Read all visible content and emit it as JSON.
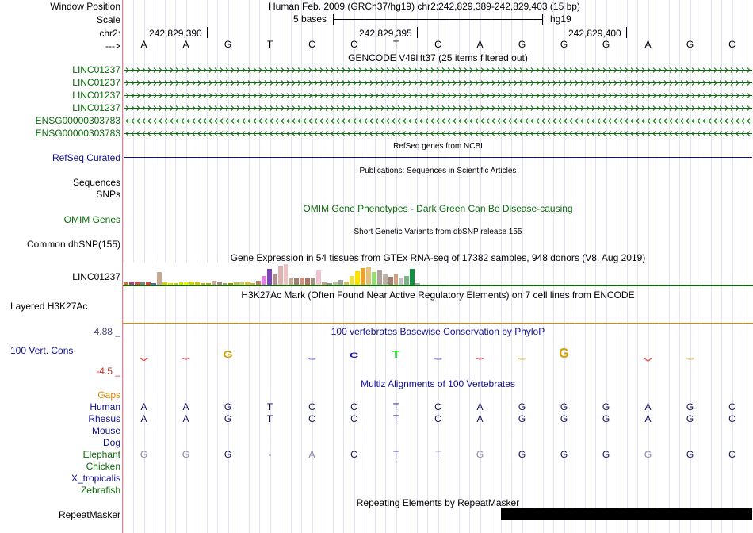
{
  "colors": {
    "label_green": "#0a6a0a",
    "label_blue": "#101090",
    "orange": "#d98a00",
    "purple_label": "#44447a"
  },
  "ruler": {
    "window_position_label": "Window Position",
    "window_text": "Human Feb. 2009 (GRCh37/hg19)   chr2:242,829,389-242,829,403 (15 bp)",
    "scale_label": "Scale",
    "scale_text": "5 bases",
    "assembly": "hg19",
    "chr_label": "chr2:",
    "positions": [
      "242,829,390",
      "242,829,395",
      "242,829,400"
    ],
    "arrow_label": "--->",
    "bases": [
      "A",
      "A",
      "G",
      "T",
      "C",
      "C",
      "T",
      "C",
      "A",
      "G",
      "G",
      "G",
      "A",
      "G",
      "C"
    ]
  },
  "gencode": {
    "title": "GENCODE V49lift37 (25 items filtered out)",
    "tracks": [
      {
        "name": "LINC01237",
        "dir": "fwd"
      },
      {
        "name": "LINC01237",
        "dir": "fwd"
      },
      {
        "name": "LINC01237",
        "dir": "fwd"
      },
      {
        "name": "LINC01237",
        "dir": "fwd"
      },
      {
        "name": "ENSG00000303783",
        "dir": "rev"
      },
      {
        "name": "ENSG00000303783",
        "dir": "rev"
      }
    ]
  },
  "refseq": {
    "title": "RefSeq genes from NCBI",
    "label": "RefSeq Curated"
  },
  "publications": {
    "title": "Publications: Sequences in Scientific Articles",
    "label": "Sequences"
  },
  "snps": {
    "label": "SNPs"
  },
  "omim": {
    "title": "OMIM Gene Phenotypes - Dark Green Can Be Disease-causing",
    "label": "OMIM Genes"
  },
  "dbsnp": {
    "title": "Short Genetic Variants from dbSNP release 155",
    "label": "Common dbSNP(155)"
  },
  "gtex": {
    "title": "Gene Expression in 54 tissues from GTEx RNA-seq of 17382 samples, 948 donors (V8, Aug 2019)",
    "label": "LINC01237",
    "bars": [
      3,
      4,
      4,
      3,
      3,
      2,
      16,
      3,
      2,
      2,
      3,
      3,
      4,
      3,
      2,
      2,
      5,
      3,
      2,
      2,
      3,
      3,
      4,
      2,
      5,
      11,
      20,
      13,
      24,
      26,
      8,
      8,
      9,
      8,
      9,
      18,
      3,
      2,
      4,
      6,
      4,
      11,
      17,
      21,
      23,
      16,
      19,
      13,
      10,
      14,
      9,
      11,
      20,
      2
    ],
    "colors": [
      "#d46a3d",
      "#a04080",
      "#cc5050",
      "#808080",
      "#e04030",
      "#6060c0",
      "#c8a890",
      "#e6c800",
      "#f0d000",
      "#c0d000",
      "#e0e000",
      "#f0f000",
      "#d0d000",
      "#e0c000",
      "#c0b000",
      "#b0b000",
      "#c8a890",
      "#b08080",
      "#a0a060",
      "#909000",
      "#c0c040",
      "#d0d060",
      "#e8c040",
      "#d8b030",
      "#c08060",
      "#e080e0",
      "#8040c0",
      "#b09090",
      "#e0b0b0",
      "#f0c0c0",
      "#c8a890",
      "#a08070",
      "#d09080",
      "#b07060",
      "#a09080",
      "#f0c0d0",
      "#d0a080",
      "#909090",
      "#c0c0a0",
      "#a0a0a0",
      "#d8b870",
      "#f0e040",
      "#ffe000",
      "#f0a030",
      "#e0c080",
      "#90e070",
      "#b0a0a0",
      "#c0b0a0",
      "#a08070",
      "#d0a080",
      "#c0c0c0",
      "#80b090",
      "#109040",
      "#c0a0d0"
    ]
  },
  "h3k27ac": {
    "title": "H3K27Ac Mark (Often Found Near Active Regulatory Elements) on 7 cell lines from ENCODE",
    "label": "Layered H3K27Ac"
  },
  "conservation": {
    "title": "100 vertebrates Basewise Conservation by PhyloP",
    "label": "100 Vert. Cons",
    "max": "4.88 _",
    "min": "-4.5 _",
    "scores": [
      -0.4,
      -0.2,
      0.9,
      0,
      -0.2,
      0.7,
      1.0,
      -0.2,
      -0.3,
      -0.3,
      1.3,
      0,
      -0.5,
      -0.2,
      0
    ]
  },
  "multiz": {
    "title": "Multiz Alignments of 100 Vertebrates",
    "gaps_label": "Gaps",
    "species": [
      {
        "name": "Human",
        "bases": [
          "A",
          "A",
          "G",
          "T",
          "C",
          "C",
          "T",
          "C",
          "A",
          "G",
          "G",
          "G",
          "A",
          "G",
          "C"
        ]
      },
      {
        "name": "Rhesus",
        "bases": [
          "A",
          "A",
          "G",
          "T",
          "C",
          "C",
          "T",
          "C",
          "A",
          "G",
          "G",
          "G",
          "A",
          "G",
          "C"
        ]
      },
      {
        "name": "Mouse",
        "bases": [
          "",
          "",
          "",
          "",
          "",
          "",
          "",
          "",
          "",
          "",
          "",
          "",
          "",
          "",
          ""
        ]
      },
      {
        "name": "Dog",
        "bases": [
          "",
          "",
          "",
          "",
          "",
          "",
          "",
          "",
          "",
          "",
          "",
          "",
          "",
          "",
          ""
        ]
      },
      {
        "name": "Elephant",
        "bases": [
          "G",
          "G",
          "G",
          "-",
          "A",
          "C",
          "T",
          "T",
          "G",
          "G",
          "G",
          "G",
          "G",
          "G",
          "C"
        ]
      },
      {
        "name": "Chicken",
        "bases": [
          "",
          "",
          "",
          "",
          "",
          "",
          "",
          "",
          "",
          "",
          "",
          "",
          "",
          "",
          ""
        ]
      },
      {
        "name": "X_tropicalis",
        "bases": [
          "",
          "",
          "",
          "",
          "",
          "",
          "",
          "",
          "",
          "",
          "",
          "",
          "",
          "",
          ""
        ]
      },
      {
        "name": "Zebrafish",
        "bases": [
          "",
          "",
          "",
          "",
          "",
          "",
          "",
          "",
          "",
          "",
          "",
          "",
          "",
          "",
          ""
        ]
      }
    ]
  },
  "repeatmasker": {
    "title": "Repeating Elements by RepeatMasker",
    "label": "RepeatMasker"
  }
}
